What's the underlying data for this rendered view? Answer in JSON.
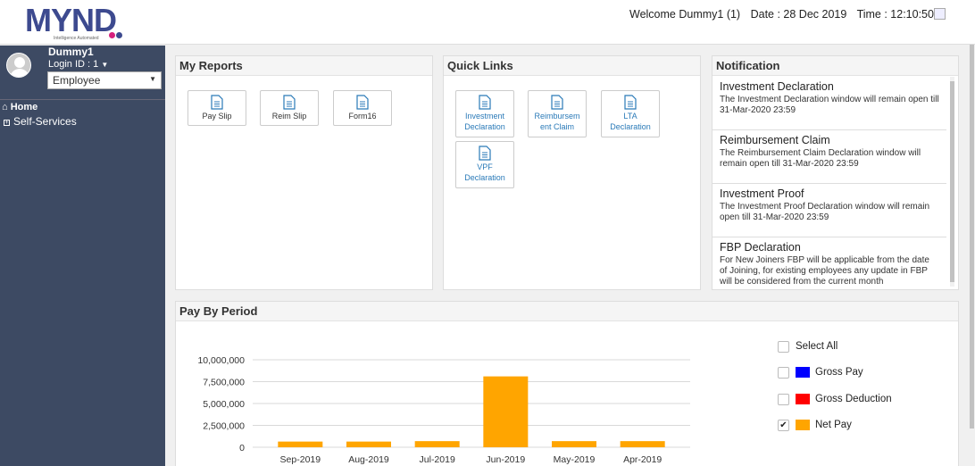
{
  "header": {
    "logo_text": "MYND",
    "logo_tagline": "Intelligence Automated",
    "welcome": "Welcome Dummy1 (1)",
    "date": "Date : 28 Dec 2019",
    "time": "Time : 12:10:50"
  },
  "sidebar": {
    "user_name": "Dummy1",
    "login_id": "Login ID : 1",
    "role": "Employee",
    "nav": [
      "Home",
      "Self-Services"
    ]
  },
  "my_reports": {
    "title": "My Reports",
    "tiles": [
      "Pay Slip",
      "Reim Slip",
      "Form16"
    ]
  },
  "quick_links": {
    "title": "Quick Links",
    "tiles": [
      [
        "Investment",
        "Declaration"
      ],
      [
        "Reimbursem",
        "ent Claim"
      ],
      [
        "LTA",
        "Declaration"
      ],
      [
        "VPF",
        "Declaration"
      ]
    ]
  },
  "notification": {
    "title": "Notification",
    "items": [
      {
        "title": "Investment Declaration",
        "text": "The Investment Declaration window will remain open till 31-Mar-2020 23:59"
      },
      {
        "title": "Reimbursement Claim",
        "text": "The Reimbursement Claim Declaration window will remain open till 31-Mar-2020 23:59"
      },
      {
        "title": "Investment Proof",
        "text": "The Investment Proof Declaration window will remain open till 31-Mar-2020 23:59"
      },
      {
        "title": "FBP Declaration",
        "text": "For New Joiners FBP will be applicable from the date of Joining, for existing employees any update in FBP will be considered from the current month"
      }
    ]
  },
  "pay_by_period": {
    "title": "Pay By Period",
    "legend": {
      "select_all": "Select All",
      "items": [
        {
          "label": "Gross Pay",
          "color": "#0000ff",
          "checked": false
        },
        {
          "label": "Gross Deduction",
          "color": "#ff0000",
          "checked": false
        },
        {
          "label": "Net Pay",
          "color": "#ffa500",
          "checked": true
        }
      ]
    }
  },
  "chart_data": {
    "type": "bar",
    "categories": [
      "Sep-2019",
      "Aug-2019",
      "Jul-2019",
      "Jun-2019",
      "May-2019",
      "Apr-2019"
    ],
    "series": [
      {
        "name": "Net Pay",
        "color": "#ffa500",
        "values": [
          650000,
          650000,
          700000,
          8100000,
          700000,
          700000
        ]
      }
    ],
    "yticks": [
      "0",
      "2,500,000",
      "5,000,000",
      "7,500,000",
      "10,000,000"
    ],
    "ylim": [
      0,
      10000000
    ],
    "grid": true,
    "legend_position": "right"
  }
}
